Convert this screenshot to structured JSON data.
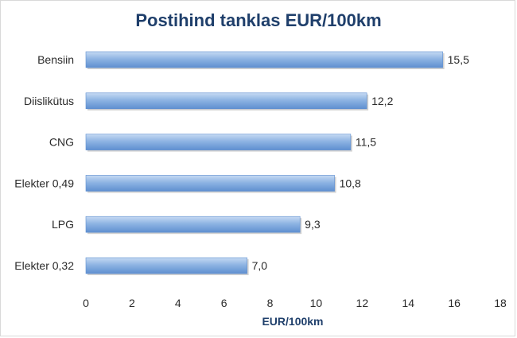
{
  "chart_data": {
    "type": "bar",
    "orientation": "horizontal",
    "title": "Postihind tanklas EUR/100km",
    "xlabel": "EUR/100km",
    "ylabel": "",
    "categories": [
      "Bensiin",
      "Diislikütus",
      "CNG",
      "Elekter 0,49",
      "LPG",
      "Elekter 0,32"
    ],
    "values": [
      15.5,
      12.2,
      11.5,
      10.8,
      9.3,
      7.0
    ],
    "value_labels": [
      "15,5",
      "12,2",
      "11,5",
      "10,8",
      "9,3",
      "7,0"
    ],
    "xlim": [
      0,
      18
    ],
    "xticks": [
      0,
      2,
      4,
      6,
      8,
      10,
      12,
      14,
      16,
      18
    ],
    "grid": false,
    "legend": "none",
    "colors": {
      "bar": "#8eb4e3",
      "bar_dark": "#5f8fd0",
      "bar_light": "#c6daf3",
      "title": "#1f3f6b"
    }
  }
}
